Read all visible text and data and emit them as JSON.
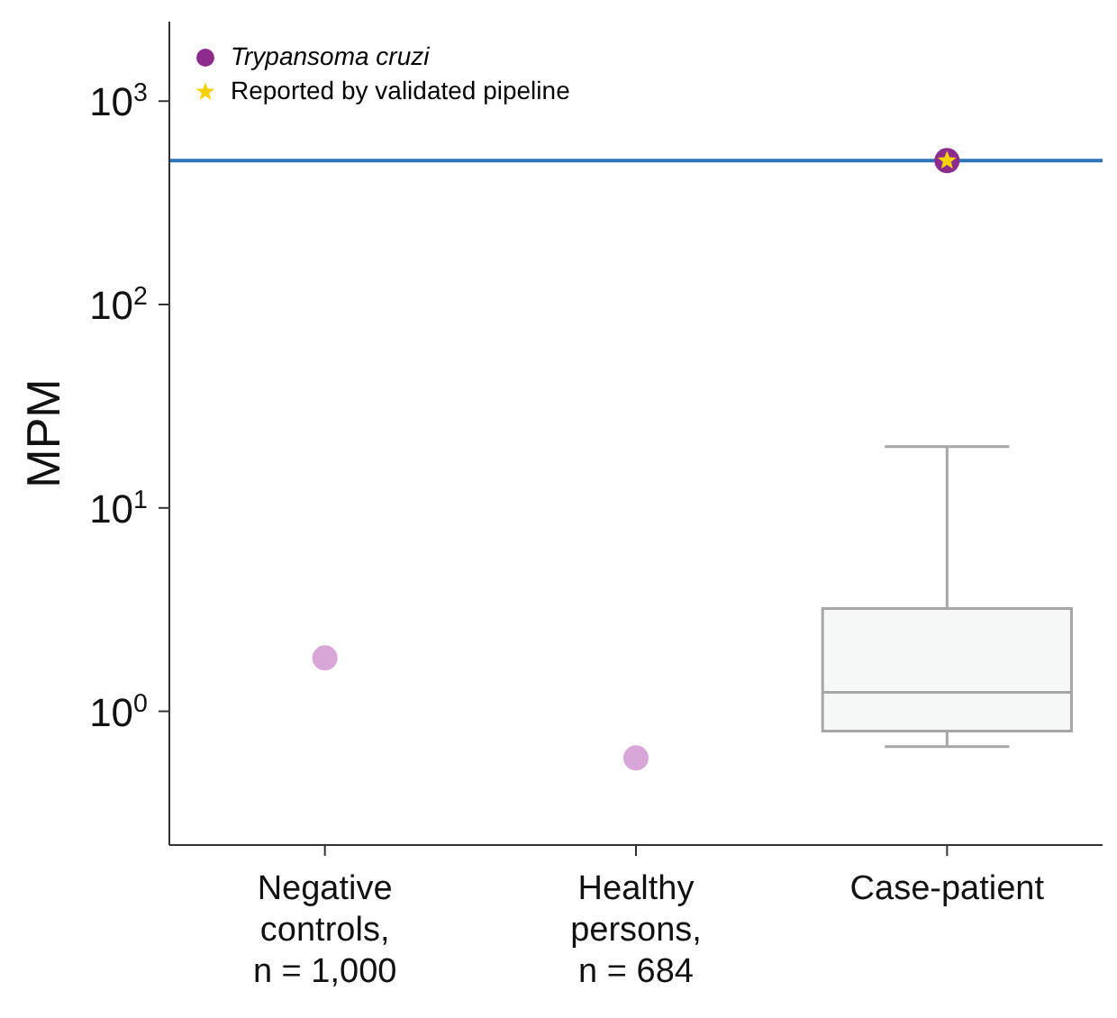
{
  "chart_data": {
    "type": "box",
    "ylabel": "MPM",
    "categories": [
      "Negative controls, n = 1,000",
      "Healthy persons, n = 684",
      "Case-patient"
    ],
    "log": "y",
    "ylim": [
      0.22,
      2460
    ],
    "yticks": [
      {
        "value": 1,
        "label": "10$^{0}$"
      },
      {
        "value": 10,
        "label": "10$^{1}$"
      },
      {
        "value": 100,
        "label": "10$^{2}$"
      },
      {
        "value": 1000,
        "label": "10$^{3}$"
      }
    ],
    "grid": false,
    "legend": "top left",
    "ref_lines": [
      {
        "axis": "y",
        "value": 510,
        "color": "#2e75b6"
      }
    ],
    "series": [
      {
        "color": "#a6a6a6",
        "boxes": [
          null,
          null,
          {
            "low": 0.67,
            "q1": 0.8,
            "median": 1.24,
            "q3": 3.2,
            "high": 20
          }
        ]
      },
      {
        "type": "scatter",
        "name": "Trypansoma cruzi",
        "marker": "circle",
        "x": [
          "Negative controls, n = 1,000",
          "Healthy persons, n = 684",
          "Case-patient"
        ],
        "values": [
          1.83,
          0.59,
          510
        ],
        "colors": [
          "#d9a7d7",
          "#d9a7d7",
          "#8e2c8e"
        ]
      },
      {
        "type": "scatter",
        "name": "Reported by validated pipeline",
        "marker": "star",
        "color": "#f5d10a",
        "x": [
          "Case-patient"
        ],
        "values": [
          510
        ]
      }
    ]
  }
}
